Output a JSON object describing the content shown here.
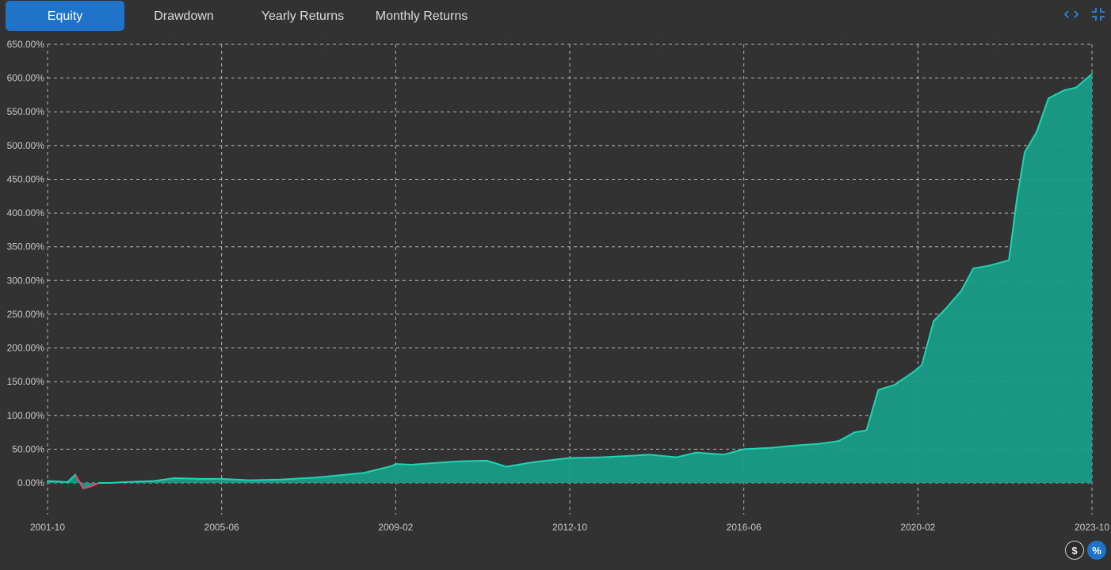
{
  "tabs": [
    {
      "label": "Equity",
      "active": true
    },
    {
      "label": "Drawdown",
      "active": false
    },
    {
      "label": "Yearly Returns",
      "active": false
    },
    {
      "label": "Monthly Returns",
      "active": false
    }
  ],
  "icons": {
    "code": "code-icon",
    "collapse": "collapse-icon",
    "dollar": "dollar-icon",
    "percent": "percent-icon"
  },
  "toggles": {
    "dollar_label": "$",
    "percent_label": "%",
    "active": "percent"
  },
  "colors": {
    "background": "#323232",
    "accent": "#1f73c8",
    "area_fill": "#17a08a",
    "area_line": "#1fd4b4",
    "negative": "#e0456a",
    "grid": "#d8d8d8"
  },
  "chart_data": {
    "type": "area",
    "title": "",
    "xlabel": "",
    "ylabel": "",
    "x_ticks": [
      "2001-10",
      "2005-06",
      "2009-02",
      "2012-10",
      "2016-06",
      "2020-02",
      "2023-10"
    ],
    "y_ticks": [
      "0.00%",
      "50.00%",
      "100.00%",
      "150.00%",
      "200.00%",
      "250.00%",
      "300.00%",
      "350.00%",
      "400.00%",
      "450.00%",
      "500.00%",
      "550.00%",
      "600.00%",
      "650.00%"
    ],
    "ylim": [
      0,
      650
    ],
    "xlim": [
      "2001-10",
      "2023-10"
    ],
    "grid": true,
    "legend": "none",
    "series": [
      {
        "x": [
          "2001-10",
          "2002-01",
          "2002-03",
          "2002-05",
          "2002-07",
          "2002-09",
          "2002-11",
          "2003-02",
          "2003-05",
          "2003-09",
          "2004-01",
          "2004-06",
          "2005-01",
          "2005-06",
          "2006-01",
          "2006-09",
          "2007-06",
          "2008-01",
          "2008-06",
          "2009-01",
          "2009-02",
          "2009-06",
          "2010-01",
          "2010-06",
          "2011-01",
          "2011-06",
          "2012-01",
          "2012-10",
          "2013-06",
          "2014-01",
          "2014-06",
          "2015-01",
          "2015-06",
          "2016-01",
          "2016-06",
          "2017-01",
          "2017-06",
          "2018-01",
          "2018-06",
          "2018-10",
          "2019-01",
          "2019-04",
          "2019-08",
          "2020-01",
          "2020-03",
          "2020-06",
          "2020-09",
          "2021-01",
          "2021-04",
          "2021-08",
          "2022-01",
          "2022-03",
          "2022-05",
          "2022-08",
          "2022-11",
          "2023-03",
          "2023-06",
          "2023-10"
        ],
        "values": [
          3,
          2,
          1,
          12,
          -8,
          -5,
          0,
          0,
          1,
          2,
          3,
          7,
          6,
          6,
          4,
          5,
          8,
          12,
          15,
          25,
          28,
          27,
          30,
          32,
          33,
          24,
          31,
          37,
          38,
          40,
          42,
          38,
          45,
          42,
          50,
          52,
          55,
          58,
          62,
          75,
          78,
          138,
          145,
          165,
          175,
          240,
          258,
          285,
          318,
          322,
          330,
          420,
          490,
          520,
          570,
          582,
          586,
          606
        ]
      }
    ]
  }
}
